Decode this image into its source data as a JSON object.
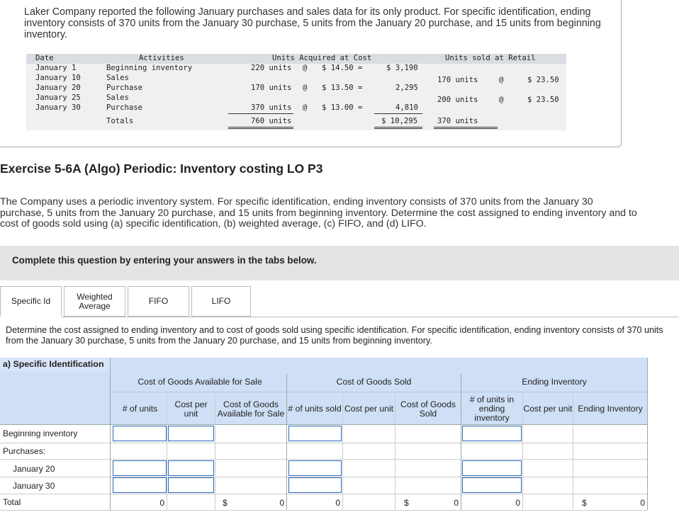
{
  "intro": {
    "text": "Laker Company reported the following January purchases and sales data for its only product. For specific identification, ending inventory consists of 370 units from the January 30 purchase, 5 units from the January 20 purchase, and 15 units from beginning inventory."
  },
  "data_table": {
    "headers": {
      "date": "Date",
      "activities": "Activities",
      "acquired": "Units Acquired at Cost",
      "sold": "Units sold at Retail"
    },
    "rows": [
      {
        "date": "January 1",
        "activity": "Beginning inventory",
        "units": "220 units",
        "at": "@",
        "cost": "$ 14.50 =",
        "total": "$ 3,190",
        "sold_units": "",
        "sold_at": "",
        "retail": ""
      },
      {
        "date": "January 10",
        "activity": "Sales",
        "units": "",
        "at": "",
        "cost": "",
        "total": "",
        "sold_units": "170 units",
        "sold_at": "@",
        "retail": "$ 23.50"
      },
      {
        "date": "January 20",
        "activity": "Purchase",
        "units": "170 units",
        "at": "@",
        "cost": "$ 13.50 =",
        "total": "2,295",
        "sold_units": "",
        "sold_at": "",
        "retail": ""
      },
      {
        "date": "January 25",
        "activity": "Sales",
        "units": "",
        "at": "",
        "cost": "",
        "total": "",
        "sold_units": "200 units",
        "sold_at": "@",
        "retail": "$ 23.50"
      },
      {
        "date": "January 30",
        "activity": "Purchase",
        "units": "370 units",
        "at": "@",
        "cost": "$ 13.00 =",
        "total": "4,810",
        "sold_units": "",
        "sold_at": "",
        "retail": ""
      }
    ],
    "totals": {
      "label": "Totals",
      "units": "760 units",
      "total": "$ 10,295",
      "sold_units": "370 units"
    }
  },
  "exercise": {
    "title": "Exercise 5-6A (Algo) Periodic: Inventory costing LO P3",
    "description": "The Company uses a periodic inventory system. For specific identification, ending inventory consists of 370 units from the January 30 purchase, 5 units from the January 20 purchase, and 15 units from beginning inventory. Determine the cost assigned to ending inventory and to cost of goods sold using (a) specific identification, (b) weighted average, (c) FIFO, and (d) LIFO."
  },
  "band": {
    "text": "Complete this question by entering your answers in the tabs below."
  },
  "tabs": [
    {
      "label": "Specific Id"
    },
    {
      "label": "Weighted Average"
    },
    {
      "label": "FIFO"
    },
    {
      "label": "LIFO"
    }
  ],
  "instructions": "Determine the cost assigned to ending inventory and to cost of goods sold using specific identification. For specific identification, ending inventory consists of 370 units from the January 30 purchase, 5 units from the January 20 purchase, and 15 units from beginning inventory.",
  "answer": {
    "section_label": "a) Specific Identification",
    "groups": {
      "available": "Cost of Goods Available for Sale",
      "sold": "Cost of Goods Sold",
      "ending": "Ending Inventory"
    },
    "columns": {
      "units": "# of units",
      "cost_per_unit": "Cost per unit",
      "cogafs": "Cost of Goods Available for Sale",
      "units_sold": "# of units sold",
      "cost_per_unit_sold": "Cost per unit",
      "cogs": "Cost of Goods Sold",
      "units_ending": "# of units in ending inventory",
      "cost_per_unit_ending": "Cost per unit",
      "ending_inventory": "Ending Inventory"
    },
    "rows": {
      "beginning": "Beginning inventory",
      "purchases": "Purchases:",
      "jan20": "January 20",
      "jan30": "January 30",
      "total": "Total"
    },
    "totals": {
      "units": "0",
      "cogafs_dollar": "$",
      "cogafs": "0",
      "units_sold": "0",
      "cogs_dollar": "$",
      "cogs": "0",
      "units_ending": "0",
      "ending_dollar": "$",
      "ending": "0"
    }
  }
}
